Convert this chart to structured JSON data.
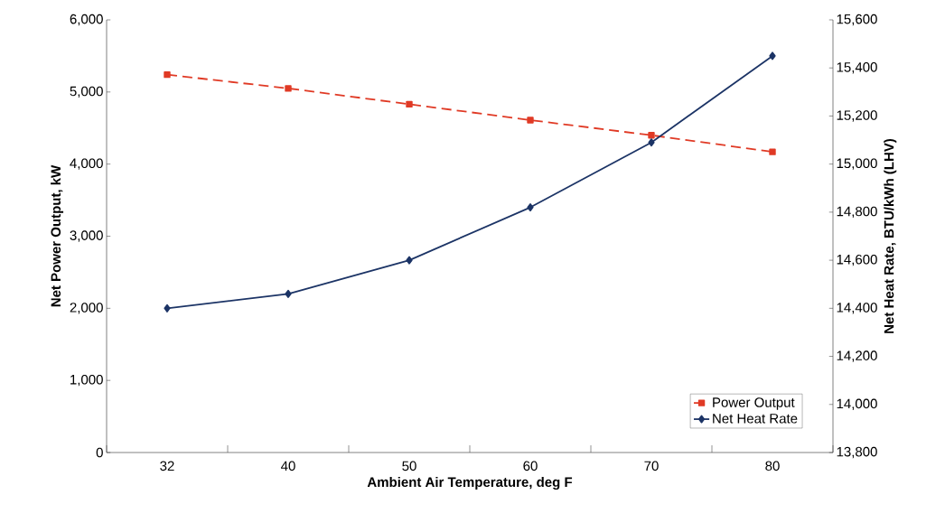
{
  "chart_data": {
    "type": "line",
    "xlabel": "Ambient Air Temperature, deg F",
    "ylabel": "Net Power Output, kW",
    "y2label": "Net Heat Rate, BTU/kWh (LHV)",
    "categories": [
      "32",
      "40",
      "50",
      "60",
      "70",
      "80"
    ],
    "series": [
      {
        "name": "Power Output",
        "color": "#e03a25",
        "values": [
          5240,
          5050,
          4830,
          4610,
          4400,
          4170
        ],
        "marker": "square",
        "line_style": "dashed"
      },
      {
        "name": "Net Heat Rate",
        "color": "#1c3466",
        "values": [
          14400,
          14460,
          14600,
          14820,
          15090,
          15450
        ],
        "marker": "diamond",
        "line_style": "solid",
        "axis": "y2"
      }
    ],
    "ylim": [
      0,
      6000
    ],
    "yticks": [
      0,
      {
        "value": 1000,
        "label": "1,000"
      },
      {
        "value": 2000,
        "label": "2,000"
      },
      {
        "value": 3000,
        "label": "3,000"
      },
      {
        "value": 4000,
        "label": "4,000"
      },
      {
        "value": 5000,
        "label": "5,000"
      },
      {
        "value": 6000,
        "label": "6,000"
      }
    ],
    "y2lim": [
      13800,
      15600
    ],
    "y2ticks": [
      {
        "value": 13800,
        "label": "13,800"
      },
      {
        "value": 14000,
        "label": "14,000"
      },
      {
        "value": 14200,
        "label": "14,200"
      },
      {
        "value": 14400,
        "label": "14,400"
      },
      {
        "value": 14600,
        "label": "14,600"
      },
      {
        "value": 14800,
        "label": "14,800"
      },
      {
        "value": 15000,
        "label": "15,000"
      },
      {
        "value": 15200,
        "label": "15,200"
      },
      {
        "value": 15400,
        "label": "15,400"
      },
      {
        "value": 15600,
        "label": "15,600"
      }
    ],
    "legend": "bottom right"
  }
}
